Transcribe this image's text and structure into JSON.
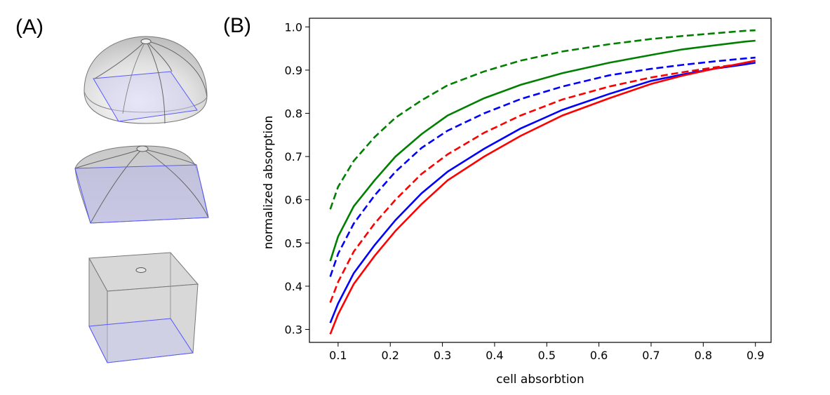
{
  "panels": {
    "a_label": "(A)",
    "b_label": "(B)"
  },
  "shapes": [
    {
      "name": "dome",
      "description": "hemisphere"
    },
    {
      "name": "pillow",
      "description": "rounded square dome"
    },
    {
      "name": "cube",
      "description": "cube"
    }
  ],
  "chart_data": {
    "type": "line",
    "title": "",
    "xlabel": "cell absorbtion",
    "ylabel": "normalized absorption",
    "xlim": [
      0.045,
      0.93
    ],
    "ylim": [
      0.27,
      1.02
    ],
    "xticks": [
      0.1,
      0.2,
      0.3,
      0.4,
      0.5,
      0.6,
      0.7,
      0.8,
      0.9
    ],
    "xtick_labels": [
      "0.1",
      "0.2",
      "0.3",
      "0.4",
      "0.5",
      "0.6",
      "0.7",
      "0.8",
      "0.9"
    ],
    "yticks": [
      0.3,
      0.4,
      0.5,
      0.6,
      0.7,
      0.8,
      0.9,
      1.0
    ],
    "ytick_labels": [
      "0.3",
      "0.4",
      "0.5",
      "0.6",
      "0.7",
      "0.8",
      "0.9",
      "1.0"
    ],
    "x": [
      0.085,
      0.1,
      0.13,
      0.17,
      0.21,
      0.26,
      0.31,
      0.38,
      0.45,
      0.53,
      0.62,
      0.7,
      0.76,
      0.82,
      0.88,
      0.9
    ],
    "series": [
      {
        "name": "green dashed",
        "color": "#007f00",
        "dash": true,
        "values": [
          0.578,
          0.63,
          0.69,
          0.745,
          0.79,
          0.83,
          0.865,
          0.897,
          0.922,
          0.943,
          0.96,
          0.972,
          0.979,
          0.985,
          0.991,
          0.992
        ]
      },
      {
        "name": "green solid",
        "color": "#007f00",
        "dash": false,
        "values": [
          0.458,
          0.515,
          0.585,
          0.645,
          0.7,
          0.752,
          0.795,
          0.835,
          0.866,
          0.893,
          0.917,
          0.935,
          0.948,
          0.957,
          0.966,
          0.968
        ]
      },
      {
        "name": "blue dashed",
        "color": "#0000ff",
        "dash": true,
        "values": [
          0.422,
          0.475,
          0.545,
          0.61,
          0.665,
          0.72,
          0.76,
          0.8,
          0.833,
          0.862,
          0.888,
          0.903,
          0.912,
          0.92,
          0.927,
          0.929
        ]
      },
      {
        "name": "red dashed",
        "color": "#ff0000",
        "dash": true,
        "values": [
          0.362,
          0.41,
          0.48,
          0.545,
          0.6,
          0.66,
          0.705,
          0.755,
          0.795,
          0.832,
          0.862,
          0.883,
          0.895,
          0.906,
          0.915,
          0.918
        ]
      },
      {
        "name": "blue solid",
        "color": "#0000ff",
        "dash": false,
        "values": [
          0.315,
          0.36,
          0.43,
          0.495,
          0.553,
          0.615,
          0.665,
          0.718,
          0.765,
          0.808,
          0.845,
          0.875,
          0.89,
          0.903,
          0.913,
          0.917
        ]
      },
      {
        "name": "red solid",
        "color": "#ff0000",
        "dash": false,
        "values": [
          0.289,
          0.335,
          0.405,
          0.47,
          0.528,
          0.59,
          0.645,
          0.7,
          0.748,
          0.795,
          0.835,
          0.868,
          0.887,
          0.903,
          0.917,
          0.922
        ]
      }
    ],
    "grid": false,
    "legend": "none"
  }
}
